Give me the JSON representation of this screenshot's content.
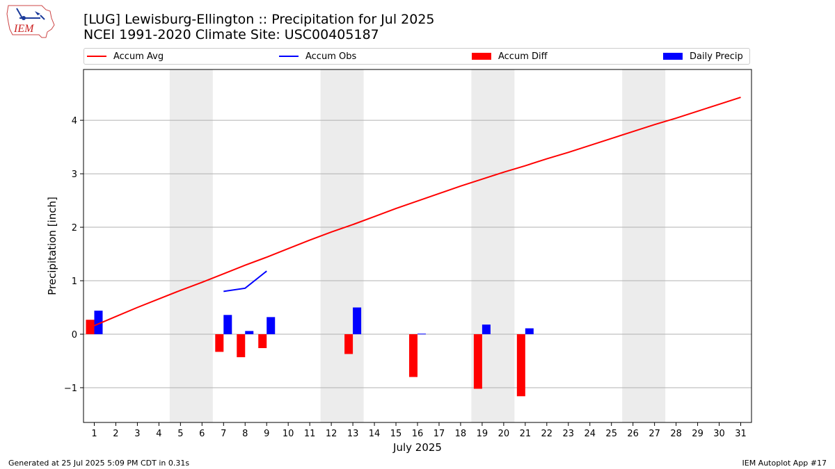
{
  "header": {
    "title_line1": "[LUG] Lewisburg-Ellington :: Precipitation for Jul 2025",
    "title_line2": "NCEI 1991-2020 Climate Site: USC00405187",
    "logo_text": "IEM"
  },
  "footer": {
    "left": "Generated at 25 Jul 2025 5:09 PM CDT in 0.31s",
    "right": "IEM Autoplot App #17"
  },
  "legend": [
    {
      "label": "Accum Avg",
      "color": "#ff0000",
      "kind": "line"
    },
    {
      "label": "Accum Obs",
      "color": "#0000ff",
      "kind": "line"
    },
    {
      "label": "Accum Diff",
      "color": "#ff0000",
      "kind": "bar"
    },
    {
      "label": "Daily Precip",
      "color": "#0000ff",
      "kind": "bar"
    }
  ],
  "chart_data": {
    "type": "bar",
    "xlabel": "July 2025",
    "ylabel": "Precipitation [inch]",
    "xlim": [
      0.5,
      31.5
    ],
    "ylim": [
      -1.65,
      4.95
    ],
    "yticks": [
      -1,
      0,
      1,
      2,
      3,
      4
    ],
    "xticks": [
      1,
      2,
      3,
      4,
      5,
      6,
      7,
      8,
      9,
      10,
      11,
      12,
      13,
      14,
      15,
      16,
      17,
      18,
      19,
      20,
      21,
      22,
      23,
      24,
      25,
      26,
      27,
      28,
      29,
      30,
      31
    ],
    "grid": "horizontal",
    "weekend_shading": [
      [
        4.5,
        6.5
      ],
      [
        11.5,
        13.5
      ],
      [
        18.5,
        20.5
      ],
      [
        25.5,
        27.5
      ]
    ],
    "shading_color": "#ececec",
    "series": [
      {
        "name": "Accum Avg",
        "type": "line",
        "color": "#ff0000",
        "x": [
          1,
          2,
          3,
          4,
          5,
          6,
          7,
          8,
          9,
          10,
          11,
          12,
          13,
          14,
          15,
          16,
          17,
          18,
          19,
          20,
          21,
          22,
          23,
          24,
          25,
          26,
          27,
          28,
          29,
          30,
          31
        ],
        "values": [
          0.16,
          0.33,
          0.5,
          0.66,
          0.82,
          0.97,
          1.13,
          1.29,
          1.44,
          1.6,
          1.76,
          1.91,
          2.05,
          2.2,
          2.35,
          2.49,
          2.63,
          2.77,
          2.9,
          3.03,
          3.15,
          3.28,
          3.4,
          3.53,
          3.66,
          3.79,
          3.92,
          4.04,
          4.17,
          4.3,
          4.43
        ]
      },
      {
        "name": "Accum Obs",
        "type": "line",
        "color": "#0000ff",
        "x": [
          7,
          8,
          9
        ],
        "values": [
          0.8,
          0.86,
          1.18
        ]
      },
      {
        "name": "Accum Diff",
        "type": "bar",
        "color": "#ff0000",
        "x": [
          1,
          7,
          8,
          9,
          13,
          16,
          19,
          21
        ],
        "values": [
          0.27,
          -0.33,
          -0.43,
          -0.26,
          -0.37,
          -0.8,
          -1.02,
          -1.16
        ]
      },
      {
        "name": "Daily Precip",
        "type": "bar",
        "color": "#0000ff",
        "x": [
          1,
          7,
          8,
          9,
          13,
          16,
          19,
          21
        ],
        "values": [
          0.44,
          0.36,
          0.06,
          0.32,
          0.5,
          0.01,
          0.18,
          0.11
        ]
      }
    ]
  }
}
